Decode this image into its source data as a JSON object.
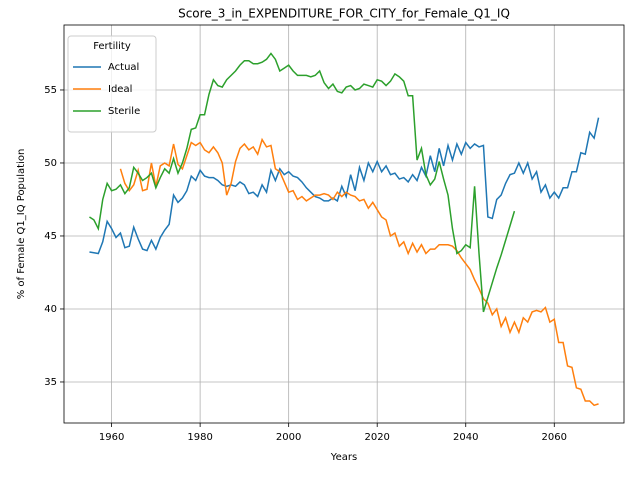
{
  "chart_data": {
    "type": "line",
    "title": "Score_3_in_EXPENDITURE_FOR_CITY_for_Female_Q1_IQ",
    "x_label": "Years",
    "y_label": "% of Female Q1_IQ Population",
    "legend_title": "Fertility",
    "legend_loc": "upper left",
    "grid": true,
    "xlim": [
      1949.25,
      2075.75
    ],
    "xticks": [
      1960,
      1980,
      2000,
      2020,
      2040,
      2060
    ],
    "ylim": [
      32.19,
      59.45
    ],
    "yticks": [
      35,
      40,
      45,
      50,
      55
    ],
    "x": [
      1955,
      1956,
      1957,
      1958,
      1959,
      1960,
      1961,
      1962,
      1963,
      1964,
      1965,
      1966,
      1967,
      1968,
      1969,
      1970,
      1971,
      1972,
      1973,
      1974,
      1975,
      1976,
      1977,
      1978,
      1979,
      1980,
      1981,
      1982,
      1983,
      1984,
      1985,
      1986,
      1987,
      1988,
      1989,
      1990,
      1991,
      1992,
      1993,
      1994,
      1995,
      1996,
      1997,
      1998,
      1999,
      2000,
      2001,
      2002,
      2003,
      2004,
      2005,
      2006,
      2007,
      2008,
      2009,
      2010,
      2011,
      2012,
      2013,
      2014,
      2015,
      2016,
      2017,
      2018,
      2019,
      2020,
      2021,
      2022,
      2023,
      2024,
      2025,
      2026,
      2027,
      2028,
      2029,
      2030,
      2031,
      2032,
      2033,
      2034,
      2035,
      2036,
      2037,
      2038,
      2039,
      2040,
      2041,
      2042,
      2043,
      2044,
      2045,
      2046,
      2047,
      2048,
      2049,
      2050,
      2051,
      2052,
      2053,
      2054,
      2055,
      2056,
      2057,
      2058,
      2059,
      2060,
      2061,
      2062,
      2063,
      2064,
      2065,
      2066,
      2067,
      2068,
      2069,
      2070
    ],
    "series": [
      {
        "name": "Actual",
        "color": "#1f77b4",
        "values": [
          43.9,
          43.85,
          43.8,
          44.6,
          46.0,
          45.5,
          44.9,
          45.2,
          44.2,
          44.3,
          45.6,
          44.8,
          44.1,
          44.0,
          44.7,
          44.1,
          44.9,
          45.4,
          45.8,
          47.8,
          47.3,
          47.6,
          48.1,
          49.1,
          48.8,
          49.5,
          49.1,
          49.0,
          49.0,
          48.8,
          48.5,
          48.4,
          48.5,
          48.4,
          48.7,
          48.5,
          47.9,
          48.0,
          47.7,
          48.5,
          48.0,
          49.5,
          48.8,
          49.6,
          49.2,
          49.4,
          49.1,
          49.0,
          48.7,
          48.3,
          48.0,
          47.7,
          47.6,
          47.4,
          47.4,
          47.6,
          47.4,
          48.4,
          47.7,
          49.2,
          48.1,
          49.7,
          48.8,
          50.0,
          49.4,
          50.1,
          49.4,
          49.8,
          49.2,
          49.3,
          48.9,
          49.0,
          48.7,
          49.2,
          48.8,
          49.7,
          49.1,
          50.5,
          49.4,
          51.0,
          49.8,
          51.2,
          50.2,
          51.3,
          50.6,
          51.4,
          51.0,
          51.3,
          51.1,
          51.2,
          46.3,
          46.2,
          47.5,
          47.8,
          48.6,
          49.2,
          49.3,
          50.0,
          49.3,
          50.0,
          48.9,
          49.4,
          48.0,
          48.5,
          47.6,
          48.0,
          47.6,
          48.3,
          48.3,
          49.4,
          49.4,
          50.7,
          50.6,
          52.1,
          51.7,
          53.1
        ]
      },
      {
        "name": "Ideal",
        "color": "#ff7f0e",
        "values": [
          null,
          null,
          null,
          null,
          null,
          null,
          null,
          49.6,
          48.6,
          48.1,
          48.5,
          49.5,
          48.1,
          48.2,
          50.0,
          48.4,
          49.8,
          50.0,
          49.8,
          51.3,
          49.9,
          49.6,
          50.5,
          51.4,
          51.2,
          51.4,
          50.9,
          50.7,
          51.1,
          50.7,
          50.0,
          47.8,
          48.6,
          50.1,
          51.0,
          51.3,
          50.9,
          51.1,
          50.6,
          51.6,
          51.1,
          51.2,
          49.6,
          49.4,
          48.7,
          48.0,
          48.1,
          47.5,
          47.7,
          47.4,
          47.6,
          47.8,
          47.8,
          47.9,
          47.8,
          47.5,
          48.0,
          47.7,
          48.0,
          47.8,
          47.7,
          47.4,
          47.5,
          46.9,
          47.3,
          46.8,
          46.3,
          46.1,
          45.0,
          45.2,
          44.3,
          44.6,
          43.8,
          44.5,
          43.9,
          44.4,
          43.8,
          44.1,
          44.1,
          44.4,
          44.4,
          44.4,
          44.3,
          44.0,
          43.5,
          43.1,
          42.7,
          42.0,
          41.4,
          40.7,
          40.4,
          39.6,
          40.0,
          38.8,
          39.4,
          38.4,
          39.1,
          38.4,
          39.4,
          39.1,
          39.8,
          39.9,
          39.8,
          40.1,
          39.1,
          39.3,
          37.7,
          37.7,
          36.1,
          36.0,
          34.6,
          34.5,
          33.7,
          33.7,
          33.4,
          33.5
        ]
      },
      {
        "name": "Sterile",
        "color": "#2ca02c",
        "values": [
          46.3,
          46.1,
          45.5,
          47.5,
          48.6,
          48.1,
          48.2,
          48.5,
          47.9,
          48.3,
          49.7,
          49.3,
          48.8,
          49.0,
          49.3,
          48.3,
          49.0,
          49.6,
          49.3,
          50.3,
          49.3,
          50.0,
          51.0,
          52.3,
          52.4,
          53.3,
          53.3,
          54.7,
          55.7,
          55.3,
          55.2,
          55.7,
          56.0,
          56.3,
          56.7,
          57.0,
          57.0,
          56.8,
          56.8,
          56.9,
          57.1,
          57.5,
          57.1,
          56.3,
          56.5,
          56.7,
          56.3,
          56.0,
          56.0,
          56.0,
          55.9,
          56.0,
          56.3,
          55.5,
          55.1,
          55.4,
          54.9,
          54.8,
          55.2,
          55.3,
          55.0,
          55.1,
          55.4,
          55.3,
          55.2,
          55.7,
          55.6,
          55.3,
          55.6,
          56.1,
          55.9,
          55.6,
          54.6,
          54.6,
          50.2,
          51.0,
          49.2,
          48.5,
          48.9,
          50.1,
          48.9,
          47.8,
          45.5,
          43.8,
          44.0,
          44.4,
          44.2,
          48.4,
          43.8,
          39.8,
          40.8,
          41.8,
          42.8,
          43.7,
          44.7,
          45.7,
          46.7,
          null,
          null,
          null,
          null,
          null,
          null,
          null,
          null,
          null,
          null,
          null,
          null,
          null,
          null,
          null,
          null,
          null,
          null,
          null
        ]
      }
    ]
  }
}
